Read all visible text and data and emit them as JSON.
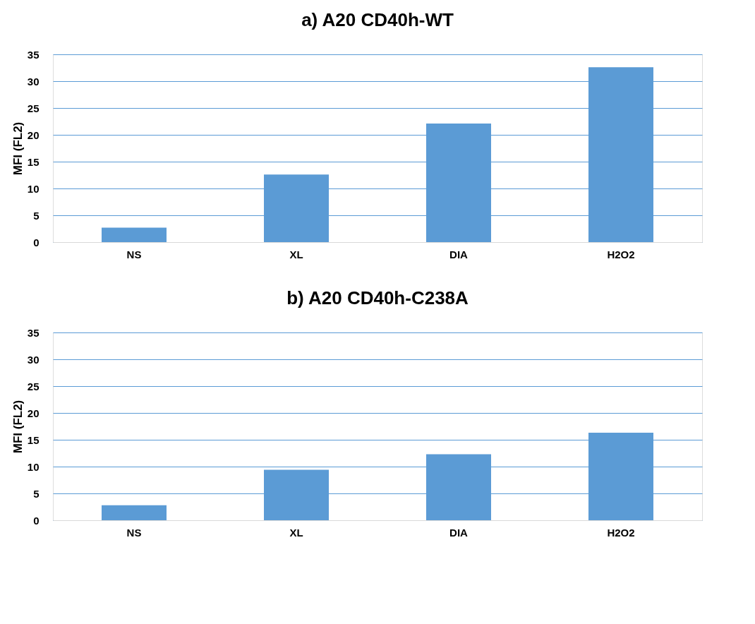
{
  "chart_data": [
    {
      "type": "bar",
      "title": "a) A20 CD40h-WT",
      "ylabel": "MFI (FL2)",
      "categories": [
        "NS",
        "XL",
        "DIA",
        "H2O2"
      ],
      "values": [
        2.7,
        12.6,
        22.1,
        32.6
      ],
      "color": "#5b9bd5",
      "ylim": [
        0,
        35
      ],
      "yticks": [
        0,
        5,
        10,
        15,
        20,
        25,
        30,
        35
      ],
      "grid": "y"
    },
    {
      "type": "bar",
      "title": "b) A20 CD40h-C238A",
      "ylabel": "MFI (FL2)",
      "categories": [
        "NS",
        "XL",
        "DIA",
        "H2O2"
      ],
      "values": [
        2.8,
        9.4,
        12.3,
        16.3
      ],
      "color": "#5b9bd5",
      "ylim": [
        0,
        35
      ],
      "yticks": [
        0,
        5,
        10,
        15,
        20,
        25,
        30,
        35
      ],
      "grid": "y"
    }
  ]
}
